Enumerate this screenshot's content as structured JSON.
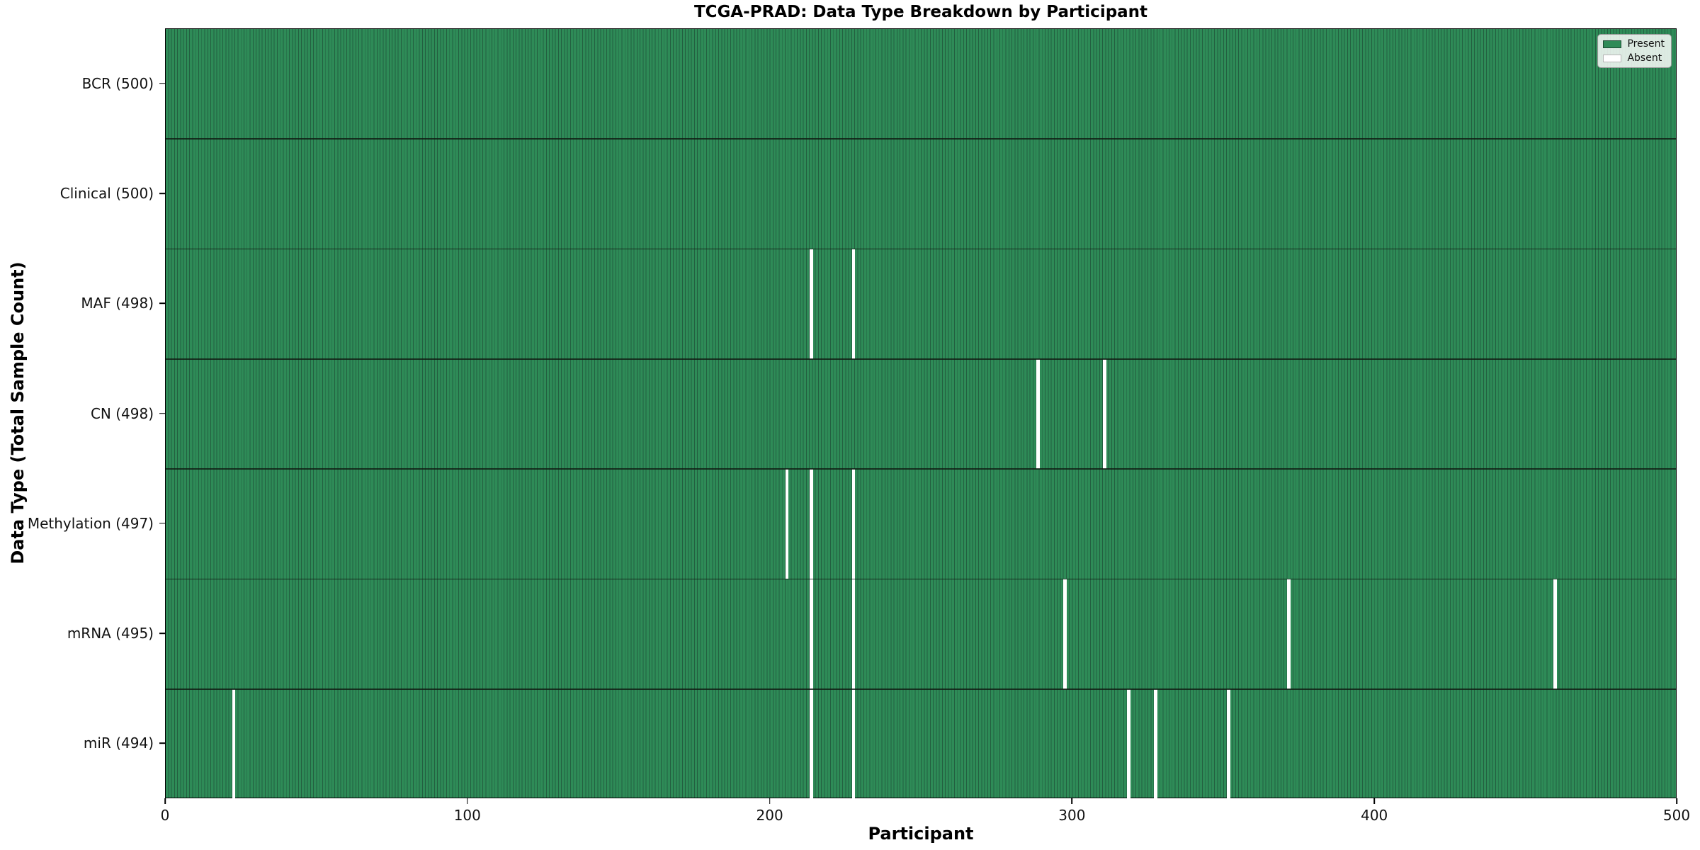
{
  "chart_data": {
    "type": "heatmap",
    "title": "TCGA-PRAD: Data Type Breakdown by Participant",
    "xlabel": "Participant",
    "ylabel": "Data Type (Total Sample Count)",
    "x_range": [
      0,
      500
    ],
    "x_ticks": [
      0,
      100,
      200,
      300,
      400,
      500
    ],
    "n_participants": 500,
    "legend": [
      "Present",
      "Absent"
    ],
    "legend_position": "upper right",
    "grid": false,
    "colors": {
      "present": "#2e8b57",
      "present_edge": "#235f40",
      "absent": "#ffffff",
      "frame": "#000000"
    },
    "rows": [
      {
        "label": "BCR (500)",
        "data_type": "BCR",
        "total": 500,
        "absent_participants": []
      },
      {
        "label": "Clinical (500)",
        "data_type": "Clinical",
        "total": 500,
        "absent_participants": []
      },
      {
        "label": "MAF (498)",
        "data_type": "MAF",
        "total": 498,
        "absent_participants": [
          213,
          227
        ]
      },
      {
        "label": "CN (498)",
        "data_type": "CN",
        "total": 498,
        "absent_participants": [
          288,
          310
        ]
      },
      {
        "label": "Methylation (497)",
        "data_type": "Methylation",
        "total": 497,
        "absent_participants": [
          205,
          213,
          227
        ]
      },
      {
        "label": "mRNA (495)",
        "data_type": "mRNA",
        "total": 495,
        "absent_participants": [
          213,
          227,
          297,
          371,
          459
        ]
      },
      {
        "label": "miR (494)",
        "data_type": "miR",
        "total": 494,
        "absent_participants": [
          22,
          213,
          227,
          318,
          327,
          351
        ]
      }
    ]
  }
}
